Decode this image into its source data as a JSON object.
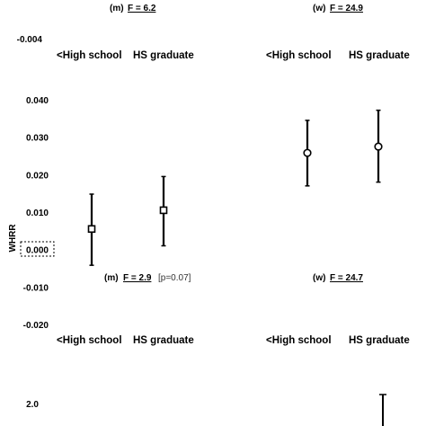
{
  "chart_data": {
    "type": "scatter",
    "ylabel": "WHRR",
    "ylim": [
      -0.02,
      0.04
    ],
    "yticks": [
      "0.040",
      "0.030",
      "0.020",
      "0.010",
      "0.000",
      "-0.010",
      "-0.020"
    ],
    "top_partial_tick": "-0.004",
    "bottom_partial_tick": "2.0",
    "categories": [
      "<High school",
      "HS graduate"
    ],
    "panels": [
      {
        "sex": "m",
        "f_stat": "F = 6.2",
        "marker": "square",
        "points": [
          {
            "category": "<High school",
            "estimate": 0.0055,
            "lower": -0.0042,
            "upper": 0.0148
          },
          {
            "category": "HS graduate",
            "estimate": 0.0105,
            "lower": 0.001,
            "upper": 0.0195
          }
        ]
      },
      {
        "sex": "w",
        "f_stat": "F = 24.9",
        "marker": "circle",
        "points": [
          {
            "category": "<High school",
            "estimate": 0.0258,
            "lower": 0.017,
            "upper": 0.0345
          },
          {
            "category": "HS graduate",
            "estimate": 0.0275,
            "lower": 0.018,
            "upper": 0.0372
          }
        ]
      }
    ],
    "lower_panel_headers": [
      {
        "sex": "m",
        "f_stat": "F = 2.9",
        "note": "[p=0.07]"
      },
      {
        "sex": "w",
        "f_stat": "F = 24.7",
        "note": ""
      }
    ]
  }
}
